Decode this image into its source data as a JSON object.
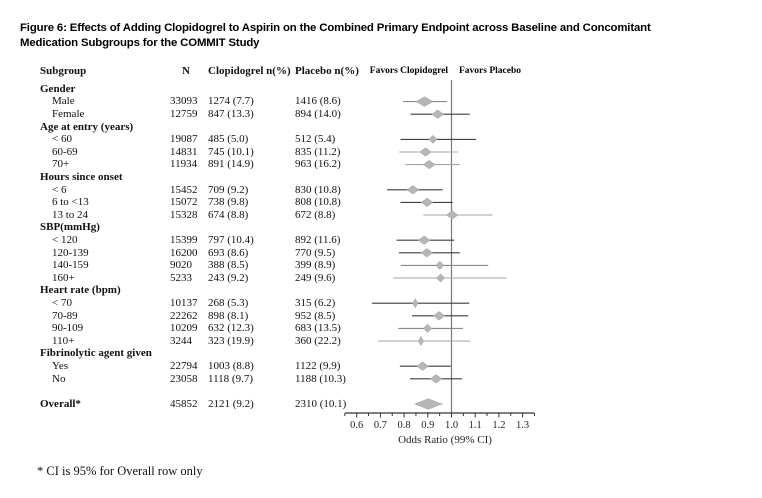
{
  "title": {
    "line1": "Figure 6: Effects  of Adding Clopidogrel to Aspirin on the Combined Primary Endpoint across Baseline and Concomitant",
    "line2": "Medication Subgroups for the COMMIT Study"
  },
  "columns": {
    "subgroup": "Subgroup",
    "n": "N",
    "clopidogrel": "Clopidogrel n(%)",
    "placebo": "Placebo n(%)"
  },
  "plot_headers": {
    "favors_left": "Favors Clopidogrel",
    "favors_right": "Favors Placebo"
  },
  "axis": {
    "label": "Odds Ratio (99% CI)",
    "major_ticks": [
      "0.6",
      "0.7",
      "0.8",
      "0.9",
      "1.0",
      "1.1",
      "1.2",
      "1.3"
    ],
    "min": 0.55,
    "max": 1.35,
    "reference": 1.0
  },
  "footnote": "* CI is 95% for Overall row only",
  "colors": {
    "diamond_fill": "#b6b6b6",
    "diamond_stroke": "#9e9e9e",
    "reference_line": "#787878",
    "axis": "#333333",
    "shades": {
      "dark": "#3f3f3f",
      "mid": "#8a8a8a",
      "light": "#a6a6a6"
    }
  },
  "chart_data": {
    "type": "scatter",
    "subtype": "forest-plot",
    "title": "Effects of Adding Clopidogrel to Aspirin on the Combined Primary Endpoint across Baseline and Concomitant Medication Subgroups for the COMMIT Study",
    "xlabel": "Odds Ratio (99% CI)",
    "xlim": [
      0.55,
      1.35
    ],
    "reference_line": 1.0,
    "rows": [
      {
        "kind": "section",
        "label": "Gender"
      },
      {
        "kind": "item",
        "label": "Male",
        "n": "33093",
        "clopidogrel": "1274 (7.7)",
        "placebo": "1416 (8.6)",
        "or": 0.886,
        "ci_low": 0.795,
        "ci_high": 0.98,
        "size": "l",
        "shade": "mid"
      },
      {
        "kind": "item",
        "label": "Female",
        "n": "12759",
        "clopidogrel": "847 (13.3)",
        "placebo": "894 (14.0)",
        "or": 0.942,
        "ci_low": 0.827,
        "ci_high": 1.077,
        "size": "m",
        "shade": "dark"
      },
      {
        "kind": "section",
        "label": "Age at entry (years)"
      },
      {
        "kind": "item",
        "label": "< 60",
        "n": "19087",
        "clopidogrel": "485 (5.0)",
        "placebo": "512 (5.4)",
        "or": 0.922,
        "ci_low": 0.785,
        "ci_high": 1.103,
        "size": "s",
        "shade": "dark"
      },
      {
        "kind": "item",
        "label": "60-69",
        "n": "14831",
        "clopidogrel": "745 (10.1)",
        "placebo": "835 (11.2)",
        "or": 0.891,
        "ci_low": 0.78,
        "ci_high": 1.026,
        "size": "m",
        "shade": "light"
      },
      {
        "kind": "item",
        "label": "70+",
        "n": "11934",
        "clopidogrel": "891 (14.9)",
        "placebo": "963 (16.2)",
        "or": 0.906,
        "ci_low": 0.806,
        "ci_high": 1.035,
        "size": "m",
        "shade": "light"
      },
      {
        "kind": "section",
        "label": "Hours since onset"
      },
      {
        "kind": "item",
        "label": "< 6",
        "n": "15452",
        "clopidogrel": "709 (9.2)",
        "placebo": "830 (10.8)",
        "or": 0.837,
        "ci_low": 0.728,
        "ci_high": 0.962,
        "size": "m",
        "shade": "dark"
      },
      {
        "kind": "item",
        "label": "6 to <13",
        "n": "15072",
        "clopidogrel": "738 (9.8)",
        "placebo": "808 (10.8)",
        "or": 0.897,
        "ci_low": 0.785,
        "ci_high": 1.005,
        "size": "m",
        "shade": "dark"
      },
      {
        "kind": "item",
        "label": "13 to 24",
        "n": "15328",
        "clopidogrel": "674 (8.8)",
        "placebo": "672 (8.8)",
        "or": 1.003,
        "ci_low": 0.881,
        "ci_high": 1.173,
        "size": "m",
        "shade": "light"
      },
      {
        "kind": "section",
        "label": "SBP(mmHg)"
      },
      {
        "kind": "item",
        "label": "< 120",
        "n": "15399",
        "clopidogrel": "797 (10.4)",
        "placebo": "892 (11.6)",
        "or": 0.885,
        "ci_low": 0.768,
        "ci_high": 1.011,
        "size": "m",
        "shade": "dark"
      },
      {
        "kind": "item",
        "label": "120-139",
        "n": "16200",
        "clopidogrel": "693 (8.6)",
        "placebo": "770 (9.5)",
        "or": 0.896,
        "ci_low": 0.778,
        "ci_high": 1.035,
        "size": "m",
        "shade": "dark"
      },
      {
        "kind": "item",
        "label": "140-159",
        "n": "9020",
        "clopidogrel": "388 (8.5)",
        "placebo": "399 (8.9)",
        "or": 0.951,
        "ci_low": 0.786,
        "ci_high": 1.155,
        "size": "s",
        "shade": "mid"
      },
      {
        "kind": "item",
        "label": "160+",
        "n": "5233",
        "clopidogrel": "243 (9.2)",
        "placebo": "249 (9.6)",
        "or": 0.954,
        "ci_low": 0.754,
        "ci_high": 1.232,
        "size": "s",
        "shade": "light"
      },
      {
        "kind": "section",
        "label": "Heart rate (bpm)"
      },
      {
        "kind": "item",
        "label": "< 70",
        "n": "10137",
        "clopidogrel": "268 (5.3)",
        "placebo": "315 (6.2)",
        "or": 0.847,
        "ci_low": 0.664,
        "ci_high": 1.075,
        "size": "t",
        "shade": "dark"
      },
      {
        "kind": "item",
        "label": "70-89",
        "n": "22262",
        "clopidogrel": "898 (8.1)",
        "placebo": "952 (8.5)",
        "or": 0.948,
        "ci_low": 0.833,
        "ci_high": 1.071,
        "size": "m",
        "shade": "dark"
      },
      {
        "kind": "item",
        "label": "90-109",
        "n": "10209",
        "clopidogrel": "632 (12.3)",
        "placebo": "683 (13.5)",
        "or": 0.899,
        "ci_low": 0.775,
        "ci_high": 1.048,
        "size": "s",
        "shade": "mid"
      },
      {
        "kind": "item",
        "label": "110+",
        "n": "3244",
        "clopidogrel": "323 (19.9)",
        "placebo": "360 (22.2)",
        "or": 0.871,
        "ci_low": 0.69,
        "ci_high": 1.08,
        "size": "t",
        "shade": "light"
      },
      {
        "kind": "section",
        "label": "Fibrinolytic agent given"
      },
      {
        "kind": "item",
        "label": "Yes",
        "n": "22794",
        "clopidogrel": "1003 (8.8)",
        "placebo": "1122 (9.9)",
        "or": 0.878,
        "ci_low": 0.782,
        "ci_high": 0.997,
        "size": "m",
        "shade": "dark"
      },
      {
        "kind": "item",
        "label": "No",
        "n": "23058",
        "clopidogrel": "1118 (9.7)",
        "placebo": "1188 (10.3)",
        "or": 0.935,
        "ci_low": 0.825,
        "ci_high": 1.044,
        "size": "m",
        "shade": "dark"
      },
      {
        "kind": "gap"
      },
      {
        "kind": "overall",
        "label": "Overall*",
        "n": "45852",
        "clopidogrel": "2121 (9.2)",
        "placebo": "2310 (10.1)",
        "or": 0.902,
        "ci_low": 0.858,
        "ci_high": 0.964,
        "size": "xl",
        "shade": "light"
      }
    ]
  }
}
